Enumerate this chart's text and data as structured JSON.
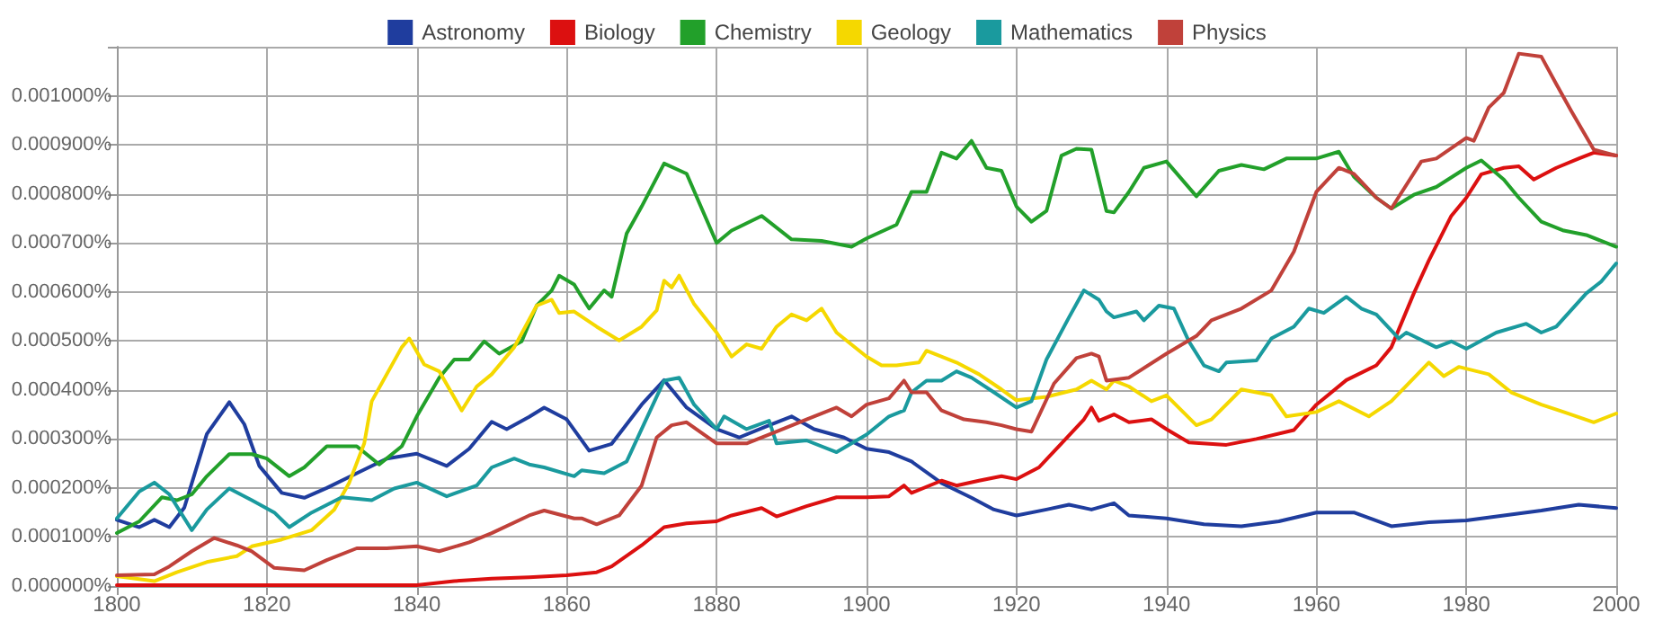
{
  "chart_data": {
    "type": "line",
    "legend": "top",
    "grid": true,
    "marker": "none",
    "line_style": "solid",
    "xlim": [
      1800,
      2000
    ],
    "xticks": [
      1800,
      1820,
      1840,
      1860,
      1880,
      1900,
      1920,
      1940,
      1960,
      1980,
      2000
    ],
    "ylim": [
      0,
      0.0011
    ],
    "yticks": [
      {
        "value": 0,
        "label": "0.000000%"
      },
      {
        "value": 0.0001,
        "label": "0.000100%"
      },
      {
        "value": 0.0002,
        "label": "0.000200%"
      },
      {
        "value": 0.0003,
        "label": "0.000300%"
      },
      {
        "value": 0.0004,
        "label": "0.000400%"
      },
      {
        "value": 0.0005,
        "label": "0.000500%"
      },
      {
        "value": 0.0006,
        "label": "0.000600%"
      },
      {
        "value": 0.0007,
        "label": "0.000700%"
      },
      {
        "value": 0.0008,
        "label": "0.000800%"
      },
      {
        "value": 0.0009,
        "label": "0.000900%"
      },
      {
        "value": 0.001,
        "label": "0.001000%"
      }
    ],
    "series": [
      {
        "name": "Astronomy",
        "color": "#1f3d9e",
        "x": [
          1800,
          1803,
          1805,
          1807,
          1809,
          1812,
          1815,
          1817,
          1819,
          1822,
          1825,
          1828,
          1832,
          1836,
          1840,
          1844,
          1847,
          1850,
          1852,
          1855,
          1857,
          1860,
          1863,
          1866,
          1870,
          1873,
          1876,
          1880,
          1883,
          1887,
          1890,
          1893,
          1897,
          1900,
          1903,
          1906,
          1910,
          1914,
          1917,
          1920,
          1924,
          1927,
          1930,
          1933,
          1935,
          1940,
          1945,
          1950,
          1955,
          1960,
          1965,
          1970,
          1975,
          1980,
          1985,
          1990,
          1995,
          2000
        ],
        "values": [
          0.000135,
          0.00012,
          0.000135,
          0.00012,
          0.00016,
          0.00031,
          0.000375,
          0.00033,
          0.000245,
          0.00019,
          0.00018,
          0.0002,
          0.00023,
          0.00026,
          0.00027,
          0.000245,
          0.00028,
          0.000335,
          0.00032,
          0.000345,
          0.000364,
          0.00034,
          0.000276,
          0.00029,
          0.00037,
          0.00042,
          0.000364,
          0.00032,
          0.000303,
          0.000328,
          0.000346,
          0.00032,
          0.000303,
          0.00028,
          0.000273,
          0.000254,
          0.00021,
          0.00018,
          0.000156,
          0.000144,
          0.000156,
          0.000166,
          0.000156,
          0.000169,
          0.000144,
          0.000138,
          0.000126,
          0.000122,
          0.000132,
          0.00015,
          0.00015,
          0.000122,
          0.00013,
          0.000134,
          0.000144,
          0.000154,
          0.000166,
          0.000159
        ]
      },
      {
        "name": "Biology",
        "color": "#dc1010",
        "x": [
          1800,
          1820,
          1840,
          1845,
          1850,
          1855,
          1860,
          1864,
          1866,
          1870,
          1873,
          1876,
          1880,
          1882,
          1886,
          1888,
          1892,
          1896,
          1900,
          1903,
          1905,
          1906,
          1910,
          1912,
          1915,
          1918,
          1920,
          1923,
          1926,
          1929,
          1930,
          1931,
          1933,
          1935,
          1938,
          1940,
          1943,
          1948,
          1952,
          1957,
          1960,
          1964,
          1968,
          1970,
          1973,
          1975,
          1978,
          1980,
          1982,
          1985,
          1987,
          1989,
          1992,
          1995,
          1997,
          2000
        ],
        "values": [
          2e-06,
          2e-06,
          2e-06,
          1e-05,
          1.5e-05,
          1.8e-05,
          2.2e-05,
          2.8e-05,
          4e-05,
          8.3e-05,
          0.00012,
          0.000128,
          0.000132,
          0.000144,
          0.000159,
          0.000142,
          0.000163,
          0.000181,
          0.000181,
          0.000183,
          0.000205,
          0.00019,
          0.000215,
          0.000205,
          0.000215,
          0.000224,
          0.000218,
          0.000242,
          0.000291,
          0.00034,
          0.000364,
          0.000337,
          0.00035,
          0.000334,
          0.00034,
          0.00032,
          0.000293,
          0.000288,
          0.0003,
          0.000318,
          0.00037,
          0.00042,
          0.00045,
          0.000487,
          0.000597,
          0.000664,
          0.000755,
          0.000792,
          0.00084,
          0.000853,
          0.000856,
          0.000829,
          0.000853,
          0.000872,
          0.000884,
          0.000878
        ]
      },
      {
        "name": "Chemistry",
        "color": "#22a02a",
        "x": [
          1800,
          1803,
          1806,
          1808,
          1810,
          1812,
          1815,
          1818,
          1820,
          1823,
          1825,
          1828,
          1832,
          1835,
          1838,
          1840,
          1843,
          1845,
          1847,
          1849,
          1851,
          1854,
          1856,
          1858,
          1859,
          1861,
          1862,
          1863,
          1865,
          1866,
          1868,
          1870,
          1873,
          1876,
          1880,
          1882,
          1886,
          1890,
          1894,
          1898,
          1900,
          1904,
          1906,
          1908,
          1910,
          1912,
          1914,
          1916,
          1918,
          1920,
          1922,
          1924,
          1926,
          1928,
          1930,
          1932,
          1933,
          1935,
          1937,
          1940,
          1944,
          1947,
          1950,
          1953,
          1956,
          1960,
          1963,
          1965,
          1968,
          1970,
          1973,
          1976,
          1980,
          1982,
          1985,
          1987,
          1990,
          1993,
          1996,
          2000
        ],
        "values": [
          0.000108,
          0.000132,
          0.000181,
          0.000175,
          0.000187,
          0.000224,
          0.000269,
          0.000269,
          0.00026,
          0.000224,
          0.000242,
          0.000285,
          0.000285,
          0.000248,
          0.000285,
          0.000346,
          0.000425,
          0.000462,
          0.000462,
          0.000499,
          0.000474,
          0.000499,
          0.000572,
          0.000603,
          0.000633,
          0.000615,
          0.00059,
          0.000566,
          0.000603,
          0.00059,
          0.000719,
          0.000774,
          0.000862,
          0.000841,
          0.0007,
          0.000725,
          0.000755,
          0.000707,
          0.000704,
          0.000692,
          0.000709,
          0.000737,
          0.000804,
          0.000804,
          0.000884,
          0.000872,
          0.000908,
          0.000853,
          0.000847,
          0.000774,
          0.000743,
          0.000765,
          0.000878,
          0.000892,
          0.00089,
          0.000765,
          0.000762,
          0.000804,
          0.000853,
          0.000866,
          0.000795,
          0.000847,
          0.000859,
          0.00085,
          0.000872,
          0.000872,
          0.000886,
          0.000835,
          0.000792,
          0.00077,
          0.000798,
          0.000814,
          0.000853,
          0.000868,
          0.000829,
          0.000792,
          0.000743,
          0.000725,
          0.000716,
          0.000692
        ]
      },
      {
        "name": "Geology",
        "color": "#f5d800",
        "x": [
          1800,
          1805,
          1808,
          1812,
          1816,
          1818,
          1822,
          1826,
          1829,
          1831,
          1833,
          1834,
          1838,
          1839,
          1841,
          1843,
          1846,
          1848,
          1850,
          1853,
          1856,
          1858,
          1859,
          1861,
          1864,
          1867,
          1870,
          1872,
          1873,
          1874,
          1875,
          1877,
          1880,
          1882,
          1884,
          1886,
          1888,
          1890,
          1892,
          1894,
          1896,
          1900,
          1902,
          1904,
          1907,
          1908,
          1912,
          1915,
          1918,
          1920,
          1924,
          1928,
          1930,
          1932,
          1933,
          1935,
          1938,
          1940,
          1944,
          1946,
          1950,
          1954,
          1956,
          1960,
          1963,
          1967,
          1970,
          1975,
          1977,
          1979,
          1983,
          1986,
          1990,
          1993,
          1997,
          2000
        ],
        "values": [
          2e-05,
          1e-05,
          2.8e-05,
          4.9e-05,
          6.1e-05,
          8.1e-05,
          9.5e-05,
          0.000114,
          0.000156,
          0.000211,
          0.000291,
          0.000377,
          0.000487,
          0.000505,
          0.000452,
          0.000438,
          0.000358,
          0.000407,
          0.000432,
          0.000487,
          0.000572,
          0.000584,
          0.000557,
          0.00056,
          0.000529,
          0.000501,
          0.000529,
          0.000562,
          0.000623,
          0.000609,
          0.000633,
          0.000575,
          0.000517,
          0.000468,
          0.000493,
          0.000484,
          0.000529,
          0.000554,
          0.000542,
          0.000566,
          0.000517,
          0.000468,
          0.00045,
          0.00045,
          0.000456,
          0.00048,
          0.000456,
          0.000432,
          0.000401,
          0.000379,
          0.000386,
          0.000401,
          0.000419,
          0.000401,
          0.000419,
          0.000407,
          0.000377,
          0.000389,
          0.000328,
          0.00034,
          0.000401,
          0.000389,
          0.000346,
          0.000355,
          0.000377,
          0.000346,
          0.000377,
          0.000456,
          0.000428,
          0.000447,
          0.000432,
          0.000395,
          0.00037,
          0.000355,
          0.000334,
          0.000352
        ]
      },
      {
        "name": "Mathematics",
        "color": "#1a9a9e",
        "x": [
          1800,
          1803,
          1805,
          1807,
          1810,
          1812,
          1815,
          1818,
          1821,
          1823,
          1826,
          1830,
          1834,
          1837,
          1840,
          1844,
          1848,
          1850,
          1853,
          1855,
          1857,
          1861,
          1862,
          1865,
          1868,
          1870,
          1873,
          1875,
          1877,
          1880,
          1881,
          1884,
          1887,
          1888,
          1892,
          1896,
          1900,
          1903,
          1905,
          1906,
          1908,
          1910,
          1912,
          1914,
          1917,
          1920,
          1922,
          1924,
          1927,
          1929,
          1931,
          1932,
          1933,
          1936,
          1937,
          1939,
          1941,
          1943,
          1945,
          1947,
          1948,
          1952,
          1954,
          1957,
          1959,
          1961,
          1964,
          1966,
          1968,
          1971,
          1972,
          1976,
          1978,
          1980,
          1984,
          1988,
          1990,
          1992,
          1996,
          1998,
          2000
        ],
        "values": [
          0.000138,
          0.000193,
          0.000211,
          0.000187,
          0.000114,
          0.000156,
          0.000199,
          0.000175,
          0.00015,
          0.00012,
          0.00015,
          0.000181,
          0.000175,
          0.000199,
          0.000211,
          0.000183,
          0.000205,
          0.000242,
          0.00026,
          0.000248,
          0.000242,
          0.000224,
          0.000236,
          0.00023,
          0.000254,
          0.00032,
          0.000419,
          0.000425,
          0.00037,
          0.00032,
          0.000346,
          0.00032,
          0.000337,
          0.000291,
          0.000297,
          0.000273,
          0.000309,
          0.000346,
          0.000358,
          0.000395,
          0.000419,
          0.000419,
          0.000438,
          0.000425,
          0.000395,
          0.000364,
          0.000377,
          0.000462,
          0.000548,
          0.000603,
          0.000584,
          0.00056,
          0.000548,
          0.00056,
          0.000542,
          0.000572,
          0.000566,
          0.000499,
          0.00045,
          0.000438,
          0.000456,
          0.00046,
          0.000505,
          0.000529,
          0.000566,
          0.000557,
          0.00059,
          0.000566,
          0.000554,
          0.000505,
          0.000517,
          0.000487,
          0.000499,
          0.000484,
          0.000517,
          0.000535,
          0.000517,
          0.000529,
          0.000597,
          0.000621,
          0.000658
        ]
      },
      {
        "name": "Physics",
        "color": "#c0413a",
        "x": [
          1800,
          1805,
          1807,
          1810,
          1813,
          1816,
          1818,
          1821,
          1825,
          1828,
          1832,
          1836,
          1840,
          1843,
          1847,
          1850,
          1855,
          1857,
          1861,
          1862,
          1864,
          1867,
          1870,
          1872,
          1874,
          1876,
          1880,
          1884,
          1888,
          1892,
          1896,
          1898,
          1900,
          1903,
          1905,
          1906,
          1908,
          1910,
          1913,
          1916,
          1918,
          1920,
          1922,
          1925,
          1928,
          1930,
          1931,
          1932,
          1935,
          1940,
          1944,
          1946,
          1950,
          1954,
          1957,
          1960,
          1963,
          1965,
          1968,
          1970,
          1974,
          1976,
          1980,
          1981,
          1983,
          1985,
          1987,
          1990,
          1992,
          1994,
          1997,
          2000
        ],
        "values": [
          2.2e-05,
          2.4e-05,
          4e-05,
          7.1e-05,
          9.8e-05,
          8.3e-05,
          7.1e-05,
          3.7e-05,
          3.2e-05,
          5.3e-05,
          7.7e-05,
          7.7e-05,
          8.1e-05,
          7.1e-05,
          8.9e-05,
          0.000108,
          0.000144,
          0.000154,
          0.000138,
          0.000138,
          0.000126,
          0.000144,
          0.000205,
          0.000303,
          0.000328,
          0.000334,
          0.000291,
          0.000291,
          0.000315,
          0.00034,
          0.000364,
          0.000346,
          0.00037,
          0.000383,
          0.000419,
          0.000395,
          0.000395,
          0.000358,
          0.00034,
          0.000334,
          0.000328,
          0.00032,
          0.000315,
          0.000413,
          0.000465,
          0.000474,
          0.000468,
          0.000419,
          0.000425,
          0.000474,
          0.00051,
          0.000542,
          0.000566,
          0.000603,
          0.000682,
          0.000804,
          0.000853,
          0.000841,
          0.000792,
          0.00077,
          0.000866,
          0.000872,
          0.000914,
          0.000908,
          0.000976,
          0.001006,
          0.001086,
          0.00108,
          0.001024,
          0.000969,
          0.00089,
          0.000878
        ]
      }
    ]
  }
}
